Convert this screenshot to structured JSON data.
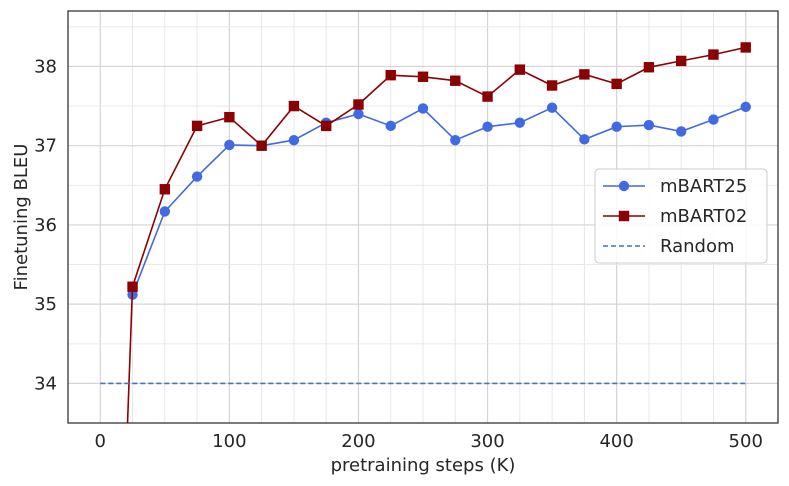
{
  "chart_data": {
    "type": "line",
    "title": "",
    "xlabel": "pretraining steps (K)",
    "ylabel": "Finetuning BLEU",
    "xlim": [
      -25,
      525
    ],
    "ylim": [
      33.5,
      38.7
    ],
    "xticks": [
      0,
      100,
      200,
      300,
      400,
      500
    ],
    "yticks": [
      34,
      35,
      36,
      37,
      38
    ],
    "grid": true,
    "legend_position": "center-right",
    "series": [
      {
        "name": "mBART25",
        "color": "#4169e1",
        "marker": "circle",
        "line_style": "solid",
        "x": [
          25,
          50,
          75,
          100,
          125,
          150,
          175,
          200,
          225,
          250,
          275,
          300,
          325,
          350,
          375,
          400,
          425,
          450,
          475,
          500
        ],
        "y": [
          35.12,
          36.17,
          36.61,
          37.01,
          37.0,
          37.07,
          37.29,
          37.4,
          37.25,
          37.47,
          37.07,
          37.24,
          37.29,
          37.48,
          37.08,
          37.24,
          37.26,
          37.18,
          37.33,
          37.49
        ]
      },
      {
        "name": "mBART02",
        "color": "#8b0000",
        "marker": "square",
        "line_style": "solid",
        "x": [
          20,
          25,
          50,
          75,
          100,
          125,
          150,
          175,
          200,
          225,
          250,
          275,
          300,
          325,
          350,
          375,
          400,
          425,
          450,
          475,
          500
        ],
        "y": [
          33.0,
          35.22,
          36.45,
          37.25,
          37.36,
          37.0,
          37.5,
          37.25,
          37.52,
          37.89,
          37.87,
          37.82,
          37.62,
          37.96,
          37.76,
          37.9,
          37.78,
          37.99,
          38.07,
          38.15,
          38.24
        ],
        "marker_from_index": 1
      },
      {
        "name": "Random",
        "color": "#4472c4",
        "marker": "none",
        "line_style": "dashed",
        "x": [
          0,
          500
        ],
        "y": [
          34.0,
          34.0
        ]
      }
    ]
  }
}
